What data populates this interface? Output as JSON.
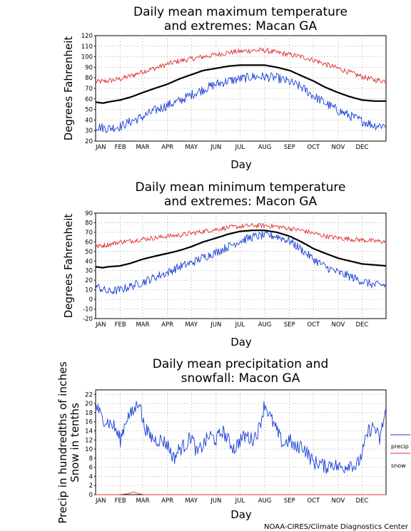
{
  "credit": "NOAA-CIRES/Climate Diagnostics Center",
  "chart_data": [
    {
      "type": "line",
      "title": [
        "Daily mean maximum temperature",
        "and extremes: Macan GA"
      ],
      "xlabel": "Day",
      "ylabel": "Degrees Fahrenheit",
      "ylim": [
        20,
        120
      ],
      "yticks": [
        20,
        30,
        40,
        50,
        60,
        70,
        80,
        90,
        100,
        110,
        120
      ],
      "xlim": [
        1,
        365
      ],
      "grid": true,
      "months": [
        "JAN",
        "FEB",
        "MAR",
        "APR",
        "MAY",
        "JUN",
        "JUL",
        "AUG",
        "SEP",
        "OCT",
        "NOV",
        "DEC"
      ],
      "month_days": [
        1,
        32,
        60,
        91,
        121,
        152,
        182,
        213,
        244,
        274,
        305,
        335
      ],
      "series": [
        {
          "role": "record_high",
          "color": "#e03030",
          "x": [
            1,
            16,
            32,
            46,
            60,
            75,
            91,
            106,
            121,
            136,
            152,
            167,
            182,
            197,
            213,
            228,
            244,
            259,
            274,
            289,
            305,
            320,
            335,
            350,
            365
          ],
          "values": [
            76,
            77,
            79,
            82,
            86,
            89,
            93,
            96,
            98,
            100,
            102,
            104,
            105,
            106,
            106,
            104,
            102,
            100,
            97,
            93,
            89,
            85,
            81,
            78,
            77
          ]
        },
        {
          "role": "mean",
          "color": "#000000",
          "x": [
            1,
            10,
            16,
            32,
            46,
            60,
            75,
            91,
            106,
            121,
            136,
            152,
            167,
            182,
            197,
            213,
            228,
            244,
            259,
            274,
            289,
            305,
            320,
            335,
            350,
            365
          ],
          "values": [
            57,
            56,
            57,
            59,
            62,
            66,
            70,
            74,
            79,
            83,
            87,
            89,
            91,
            92,
            92,
            92,
            90,
            87,
            82,
            77,
            71,
            66,
            62,
            59,
            58,
            58
          ]
        },
        {
          "role": "record_low",
          "color": "#1a3fd6",
          "x": [
            1,
            16,
            32,
            46,
            60,
            75,
            91,
            106,
            121,
            136,
            152,
            167,
            182,
            197,
            213,
            228,
            244,
            259,
            274,
            289,
            305,
            320,
            335,
            350,
            365
          ],
          "values": [
            34,
            32,
            34,
            39,
            43,
            49,
            54,
            58,
            64,
            69,
            74,
            77,
            79,
            81,
            81,
            80,
            76,
            71,
            63,
            56,
            49,
            44,
            39,
            35,
            35
          ]
        }
      ]
    },
    {
      "type": "line",
      "title": [
        "Daily mean minimum temperature",
        "and extremes: Macon GA"
      ],
      "xlabel": "Day",
      "ylabel": "Degrees Fahrenheit",
      "ylim": [
        -20,
        90
      ],
      "yticks": [
        -20,
        -10,
        0,
        10,
        20,
        30,
        40,
        50,
        60,
        70,
        80,
        90
      ],
      "xlim": [
        1,
        365
      ],
      "grid": true,
      "months": [
        "JAN",
        "FEB",
        "MAR",
        "APR",
        "MAY",
        "JUN",
        "JUL",
        "AUG",
        "SEP",
        "OCT",
        "NOV",
        "DEC"
      ],
      "month_days": [
        1,
        32,
        60,
        91,
        121,
        152,
        182,
        213,
        244,
        274,
        305,
        335
      ],
      "series": [
        {
          "role": "record_high",
          "color": "#e03030",
          "x": [
            1,
            16,
            32,
            46,
            60,
            75,
            91,
            106,
            121,
            136,
            152,
            167,
            182,
            197,
            213,
            228,
            244,
            259,
            274,
            289,
            305,
            320,
            335,
            350,
            365
          ],
          "values": [
            55,
            57,
            60,
            61,
            63,
            64,
            66,
            67,
            69,
            71,
            73,
            75,
            76,
            77,
            77,
            76,
            74,
            72,
            69,
            66,
            64,
            63,
            62,
            61,
            60
          ]
        },
        {
          "role": "mean",
          "color": "#000000",
          "x": [
            1,
            10,
            16,
            32,
            46,
            60,
            75,
            91,
            106,
            121,
            136,
            152,
            167,
            182,
            197,
            213,
            228,
            244,
            259,
            274,
            289,
            305,
            320,
            335,
            350,
            365
          ],
          "values": [
            34,
            33,
            34,
            35,
            38,
            42,
            45,
            48,
            51,
            55,
            60,
            64,
            68,
            71,
            72,
            72,
            70,
            66,
            60,
            53,
            48,
            43,
            40,
            37,
            36,
            35
          ]
        },
        {
          "role": "record_low",
          "color": "#1a3fd6",
          "x": [
            1,
            16,
            32,
            46,
            60,
            75,
            91,
            106,
            121,
            136,
            152,
            167,
            182,
            197,
            213,
            228,
            244,
            259,
            274,
            289,
            305,
            320,
            335,
            350,
            365
          ],
          "values": [
            14,
            8,
            10,
            14,
            18,
            23,
            28,
            34,
            38,
            44,
            49,
            55,
            61,
            65,
            67,
            66,
            61,
            52,
            42,
            34,
            28,
            24,
            19,
            15,
            15
          ]
        }
      ]
    },
    {
      "type": "line",
      "title": [
        "Daily mean precipitation and",
        "snowfall: Macon GA"
      ],
      "xlabel": "Day",
      "ylabel": [
        "Precip in hundredths of inches",
        "Snow in tenths"
      ],
      "ylim": [
        0,
        23
      ],
      "yticks": [
        0,
        2,
        4,
        6,
        8,
        10,
        12,
        14,
        16,
        18,
        20,
        22
      ],
      "xlim": [
        1,
        365
      ],
      "grid": true,
      "months": [
        "JAN",
        "FEB",
        "MAR",
        "APR",
        "MAY",
        "JUN",
        "JUL",
        "AUG",
        "SEP",
        "OCT",
        "NOV",
        "DEC"
      ],
      "month_days": [
        1,
        32,
        60,
        91,
        121,
        152,
        182,
        213,
        244,
        274,
        305,
        335
      ],
      "legend": {
        "position": "right",
        "entries": [
          "precip",
          "snow"
        ]
      },
      "series": [
        {
          "name": "precip",
          "color": "#1a3fd6",
          "x": [
            1,
            8,
            16,
            24,
            32,
            40,
            48,
            56,
            60,
            68,
            76,
            84,
            91,
            99,
            106,
            114,
            121,
            128,
            136,
            144,
            152,
            160,
            167,
            175,
            182,
            190,
            197,
            205,
            213,
            220,
            228,
            236,
            244,
            252,
            259,
            267,
            274,
            282,
            289,
            297,
            305,
            312,
            320,
            328,
            335,
            343,
            350,
            357,
            365
          ],
          "values": [
            20,
            17,
            16,
            15,
            12,
            17,
            18,
            21,
            16,
            13,
            12,
            12,
            11,
            8,
            10,
            11,
            13,
            9,
            11,
            13,
            12,
            14,
            12,
            10,
            12,
            13,
            12,
            14,
            20,
            17,
            14,
            11,
            12,
            10,
            11,
            9,
            7,
            7,
            6,
            7,
            6,
            6,
            7,
            6,
            9,
            14,
            15,
            12,
            19
          ]
        },
        {
          "name": "snow",
          "color": "#e03030",
          "x": [
            1,
            30,
            42,
            48,
            55,
            62,
            75,
            365
          ],
          "values": [
            0,
            0,
            0.2,
            0.6,
            0.2,
            0,
            0,
            0
          ]
        }
      ]
    }
  ]
}
